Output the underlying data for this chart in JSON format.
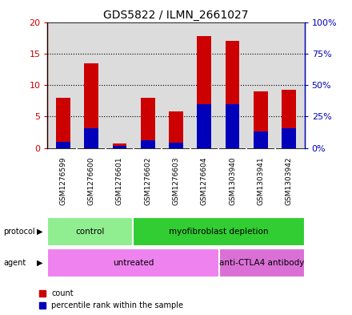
{
  "title": "GDS5822 / ILMN_2661027",
  "samples": [
    "GSM1276599",
    "GSM1276600",
    "GSM1276601",
    "GSM1276602",
    "GSM1276603",
    "GSM1276604",
    "GSM1303940",
    "GSM1303941",
    "GSM1303942"
  ],
  "count_values": [
    8.0,
    13.5,
    0.7,
    8.0,
    5.8,
    17.8,
    17.0,
    9.0,
    9.2
  ],
  "percentile_values_pct": [
    5.0,
    16.0,
    2.0,
    6.0,
    4.0,
    35.0,
    35.0,
    13.0,
    16.0
  ],
  "ylim_left": [
    0,
    20
  ],
  "ylim_right": [
    0,
    100
  ],
  "yticks_left": [
    0,
    5,
    10,
    15,
    20
  ],
  "yticks_right": [
    0,
    25,
    50,
    75,
    100
  ],
  "ytick_labels_left": [
    "0",
    "5",
    "10",
    "15",
    "20"
  ],
  "ytick_labels_right": [
    "0%",
    "25%",
    "50%",
    "75%",
    "100%"
  ],
  "protocol_groups": [
    {
      "label": "control",
      "start": 0,
      "end": 3,
      "color": "#90EE90"
    },
    {
      "label": "myofibroblast depletion",
      "start": 3,
      "end": 9,
      "color": "#32CD32"
    }
  ],
  "agent_groups": [
    {
      "label": "untreated",
      "start": 0,
      "end": 6,
      "color": "#EE82EE"
    },
    {
      "label": "anti-CTLA4 antibody",
      "start": 6,
      "end": 9,
      "color": "#DA70D6"
    }
  ],
  "bar_color_red": "#CC0000",
  "bar_color_blue": "#0000BB",
  "bar_width": 0.5,
  "bg_color": "#DCDCDC",
  "legend_count_label": "count",
  "legend_percentile_label": "percentile rank within the sample"
}
